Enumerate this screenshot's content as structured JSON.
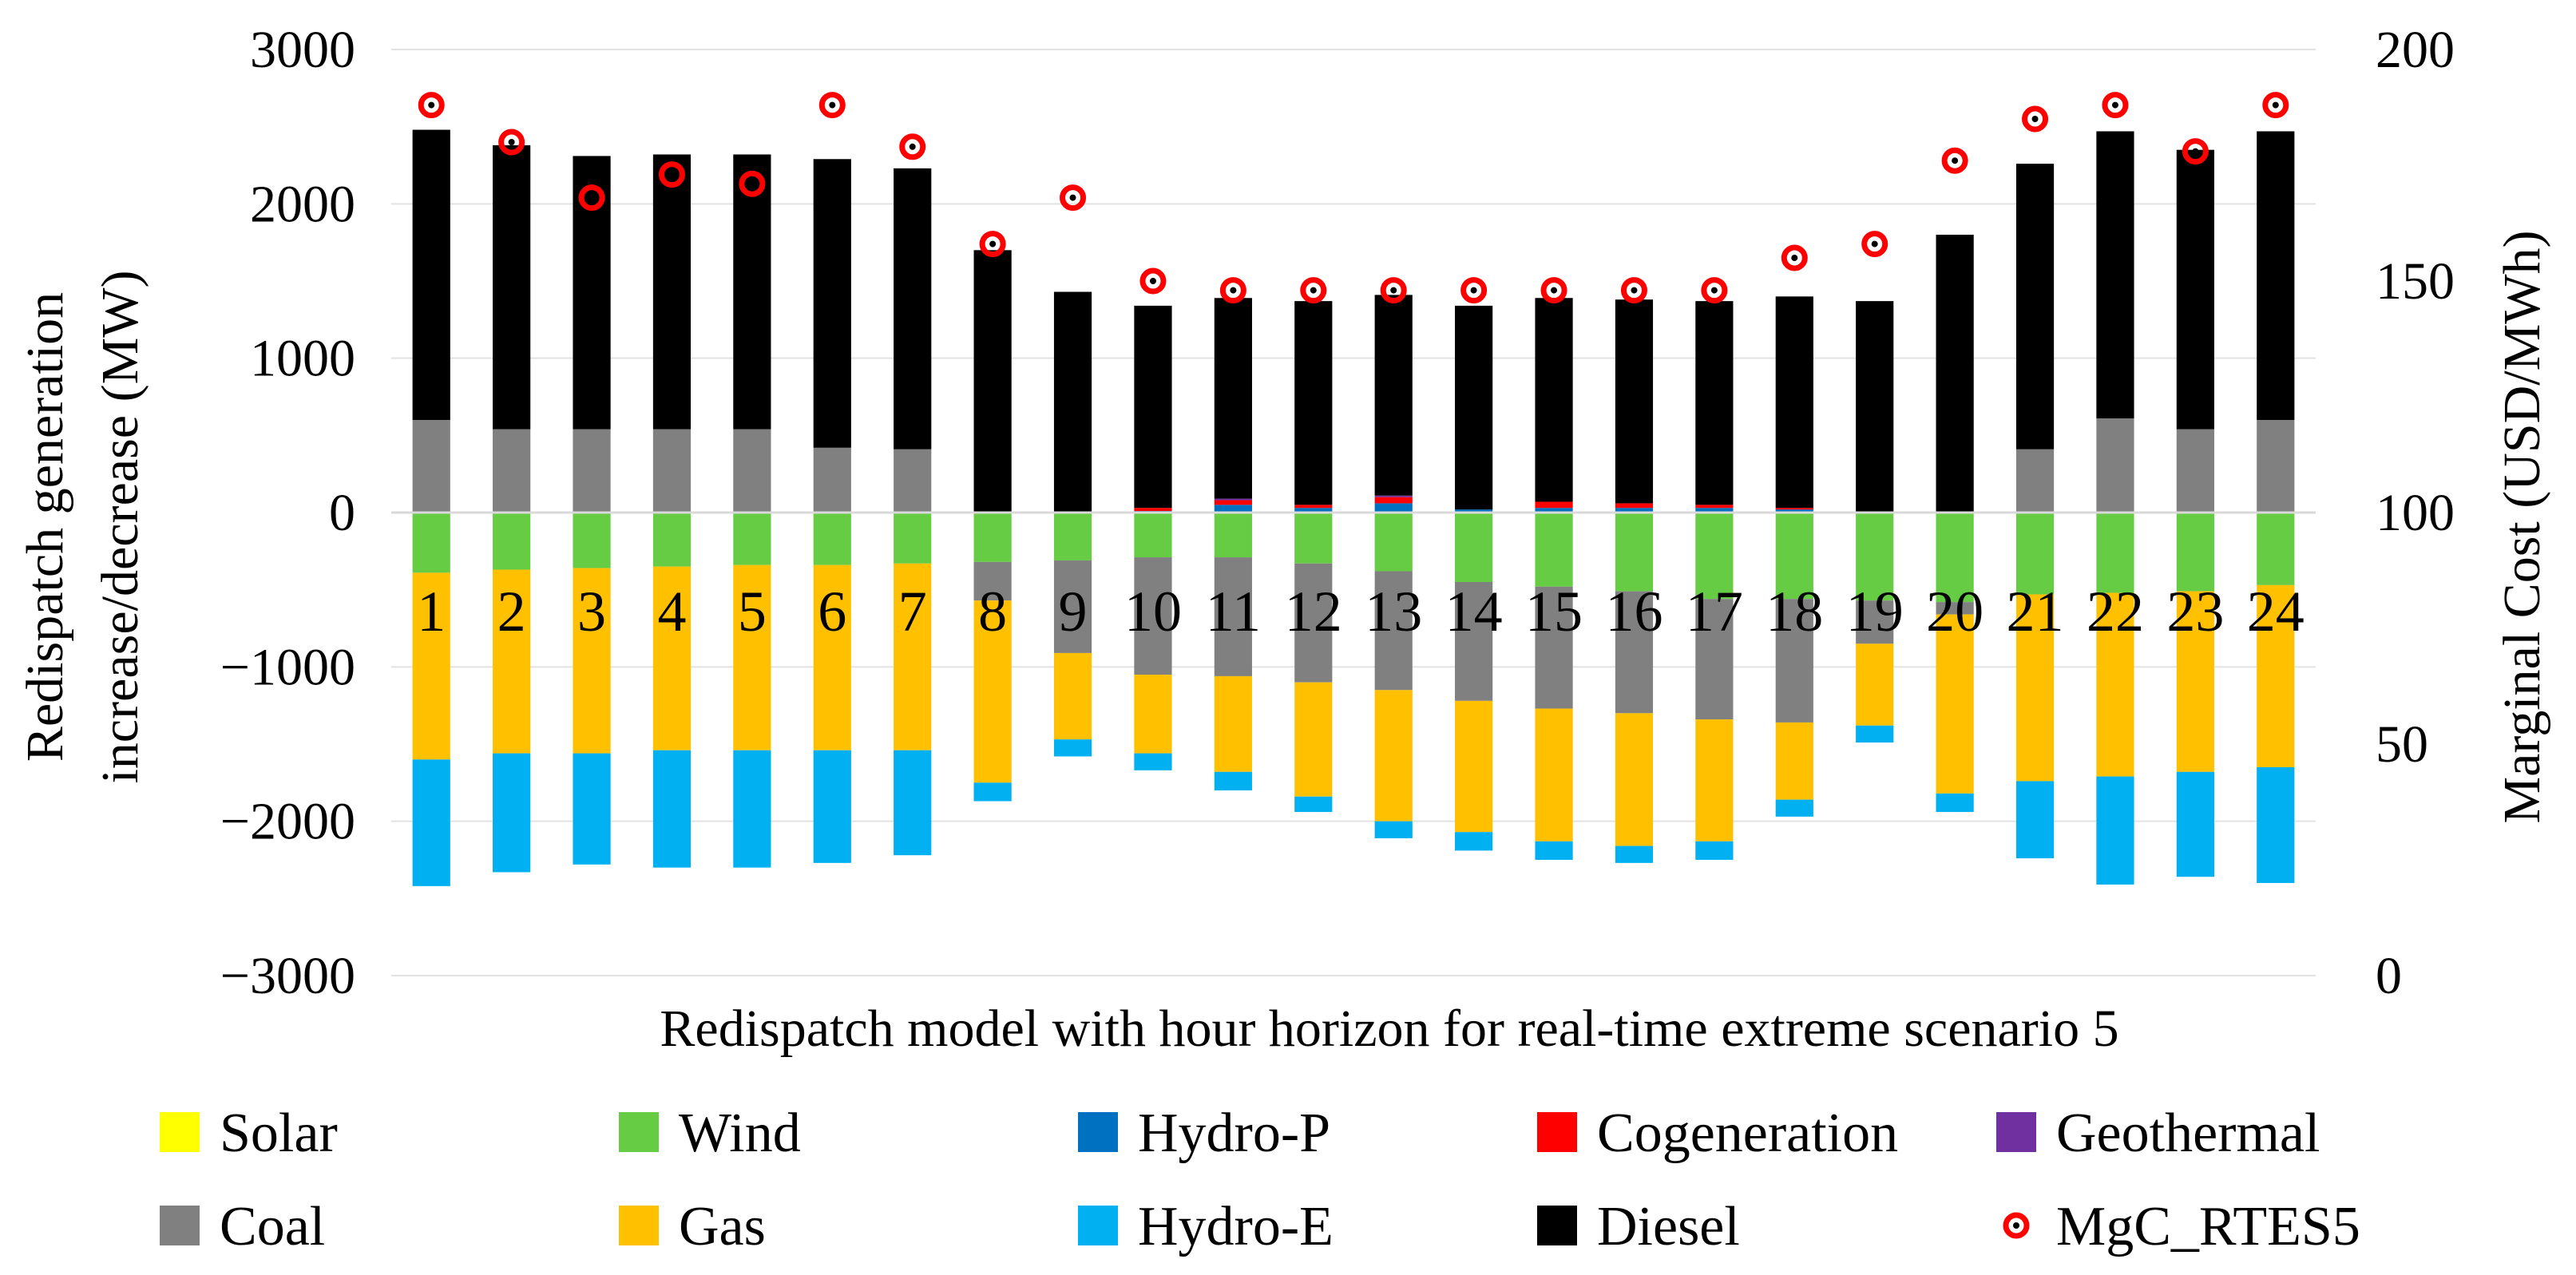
{
  "chart_data": {
    "type": "bar",
    "stacked": true,
    "xlabel": "Redispatch model with hour horizon for real-time extreme scenario 5",
    "ylabel_lines": [
      "Redispatch generation",
      "increase/decrease (MW)"
    ],
    "y2label": "Marginal Cost (USD/MWh)",
    "ylim": [
      -3000,
      3000
    ],
    "y2lim": [
      0,
      200
    ],
    "yticks": [
      "3000",
      "2000",
      "1000",
      "0",
      "−1000",
      "−2000",
      "−3000"
    ],
    "y2ticks": [
      "200",
      "150",
      "100",
      "50",
      "0"
    ],
    "grid": true,
    "legend_position": "bottom",
    "categories": [
      "1",
      "2",
      "3",
      "4",
      "5",
      "6",
      "7",
      "8",
      "9",
      "10",
      "11",
      "12",
      "13",
      "14",
      "15",
      "16",
      "17",
      "18",
      "19",
      "20",
      "21",
      "22",
      "23",
      "24"
    ],
    "series": [
      {
        "name": "Solar",
        "color": "#FFFF00",
        "values": [
          0,
          0,
          0,
          0,
          0,
          0,
          0,
          0,
          0,
          0,
          0,
          0,
          0,
          0,
          0,
          0,
          0,
          0,
          0,
          0,
          0,
          0,
          0,
          0
        ]
      },
      {
        "name": "Wind",
        "color": "#66CC44",
        "values": [
          -390,
          -370,
          -360,
          -350,
          -340,
          -340,
          -330,
          -320,
          -310,
          -290,
          -290,
          -330,
          -380,
          -450,
          -480,
          -510,
          -560,
          -560,
          -570,
          -580,
          -530,
          -520,
          -510,
          -470
        ]
      },
      {
        "name": "Hydro-P",
        "color": "#0070C0",
        "values": [
          0,
          0,
          0,
          0,
          0,
          0,
          0,
          0,
          0,
          10,
          50,
          30,
          60,
          20,
          30,
          30,
          30,
          20,
          0,
          0,
          0,
          0,
          0,
          0
        ]
      },
      {
        "name": "Cogeneration",
        "color": "#FF0000",
        "values": [
          0,
          0,
          0,
          0,
          0,
          0,
          0,
          0,
          0,
          20,
          30,
          20,
          40,
          0,
          40,
          30,
          20,
          10,
          0,
          0,
          0,
          0,
          0,
          0
        ]
      },
      {
        "name": "Geothermal",
        "color": "#7030A0",
        "values": [
          0,
          0,
          0,
          0,
          0,
          0,
          0,
          0,
          0,
          0,
          10,
          0,
          10,
          0,
          0,
          0,
          0,
          0,
          0,
          0,
          0,
          0,
          0,
          0
        ]
      },
      {
        "name": "Coal",
        "color": "#808080",
        "positive": [
          600,
          540,
          540,
          540,
          540,
          420,
          410,
          0,
          0,
          0,
          0,
          0,
          0,
          0,
          0,
          0,
          0,
          0,
          0,
          0,
          410,
          610,
          540,
          600
        ],
        "negative": [
          0,
          0,
          0,
          0,
          0,
          0,
          0,
          -250,
          -600,
          -760,
          -770,
          -770,
          -770,
          -770,
          -790,
          -790,
          -780,
          -800,
          -280,
          -80,
          0,
          0,
          0,
          0
        ]
      },
      {
        "name": "Gas",
        "color": "#FFC000",
        "values": [
          -1210,
          -1190,
          -1200,
          -1190,
          -1200,
          -1200,
          -1210,
          -1180,
          -560,
          -510,
          -620,
          -740,
          -850,
          -850,
          -860,
          -860,
          -790,
          -500,
          -530,
          -1160,
          -1210,
          -1190,
          -1170,
          -1180
        ]
      },
      {
        "name": "Hydro-E",
        "color": "#00B0F0",
        "values": [
          -820,
          -770,
          -720,
          -760,
          -760,
          -730,
          -680,
          -120,
          -110,
          -110,
          -120,
          -100,
          -110,
          -120,
          -120,
          -110,
          -120,
          -110,
          -110,
          -120,
          -500,
          -700,
          -680,
          -750
        ]
      },
      {
        "name": "Diesel",
        "color": "#000000",
        "values": [
          1880,
          1840,
          1770,
          1780,
          1780,
          1870,
          1820,
          1700,
          1430,
          1310,
          1300,
          1320,
          1300,
          1320,
          1320,
          1320,
          1320,
          1370,
          1370,
          1800,
          1850,
          1860,
          1810,
          1870
        ]
      }
    ],
    "line_series": {
      "name": "MgC_RTES5",
      "axis": "right",
      "values": [
        188,
        180,
        168,
        173,
        171,
        188,
        179,
        158,
        168,
        150,
        148,
        148,
        148,
        148,
        148,
        148,
        148,
        155,
        158,
        176,
        185,
        188,
        178,
        188
      ]
    },
    "legend": [
      {
        "label": "Solar",
        "color": "#FFFF00",
        "marker": "square"
      },
      {
        "label": "Wind",
        "color": "#66CC44",
        "marker": "square"
      },
      {
        "label": "Hydro-P",
        "color": "#0070C0",
        "marker": "square"
      },
      {
        "label": "Cogeneration",
        "color": "#FF0000",
        "marker": "square"
      },
      {
        "label": "Geothermal",
        "color": "#7030A0",
        "marker": "square"
      },
      {
        "label": "Coal",
        "color": "#808080",
        "marker": "square"
      },
      {
        "label": "Gas",
        "color": "#FFC000",
        "marker": "square"
      },
      {
        "label": "Hydro-E",
        "color": "#00B0F0",
        "marker": "square"
      },
      {
        "label": "Diesel",
        "color": "#000000",
        "marker": "square"
      },
      {
        "label": "MgC_RTES5",
        "color": "#FF0000",
        "marker": "ring"
      }
    ]
  }
}
